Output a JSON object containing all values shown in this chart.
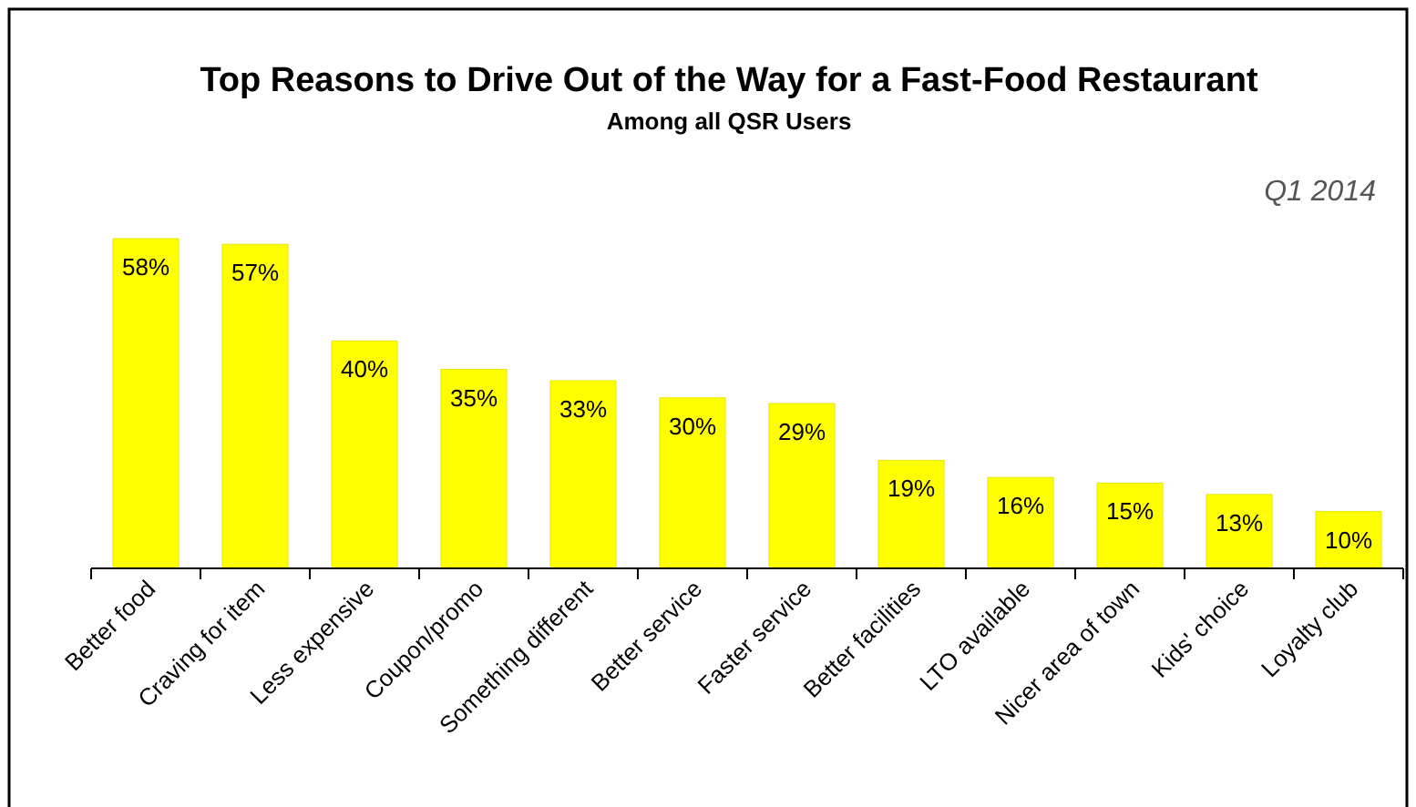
{
  "chart_data": {
    "type": "bar",
    "title": "Top Reasons to Drive Out of the Way for a Fast-Food Restaurant",
    "subtitle": "Among all QSR Users",
    "annotations": [
      "Q1 2014"
    ],
    "categories": [
      "Better food",
      "Craving for item",
      "Less expensive",
      "Coupon/promo",
      "Something different",
      "Better service",
      "Faster service",
      "Better facilities",
      "LTO available",
      "Nicer area of town",
      "Kids' choice",
      "Loyalty club"
    ],
    "values": [
      58,
      57,
      40,
      35,
      33,
      30,
      29,
      19,
      16,
      15,
      13,
      10
    ],
    "value_labels": [
      "58%",
      "57%",
      "40%",
      "35%",
      "33%",
      "30%",
      "29%",
      "19%",
      "16%",
      "15%",
      "13%",
      "10%"
    ],
    "color": "#ffff00"
  }
}
